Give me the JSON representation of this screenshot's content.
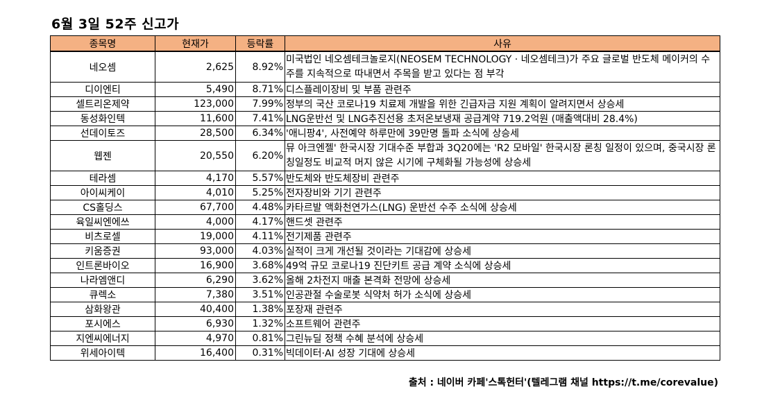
{
  "title": "6월 3일 52주 신고가",
  "headers": [
    "종목명",
    "현재가",
    "등락률",
    "사유"
  ],
  "rows": [
    {
      "name": "네오셈",
      "price": "2,625",
      "change": "8.92%",
      "reason": "미국법인 네오셈테크놀로지(NEOSEM TECHNOLOGY · 네오셈테크)가 주요 글로벌 반도체 메이커의 수주를 지속적으로 따내면서 주목을 받고 있다는 점 부각"
    },
    {
      "name": "디이엔티",
      "price": "5,490",
      "change": "8.71%",
      "reason": "디스플레이장비 및 부품 관련주"
    },
    {
      "name": "셀트리온제약",
      "price": "123,000",
      "change": "7.99%",
      "reason": "정부의 국산 코로나19 치료제 개발을 위한 긴급자금 지원 계획이 알려지면서 상승세"
    },
    {
      "name": "동성화인텍",
      "price": "11,600",
      "change": "7.41%",
      "reason": "LNG운반선 및 LNG추진선용 초저온보냉재 공급계약 719.2억원 (매출액대비 28.4%)"
    },
    {
      "name": "선데이토즈",
      "price": "28,500",
      "change": "6.34%",
      "reason": "'애니팡4', 사전예약 하루만에 39만명 돌파 소식에 상승세"
    },
    {
      "name": "웹젠",
      "price": "20,550",
      "change": "6.20%",
      "reason": "뮤 아크엔젤' 한국시장 기대수준 부합과 3Q20에는 'R2 모바일' 한국시장 론칭 일정이 있으며, 중국시장 론칭일정도 비교적 머지 않은 시기에 구체화될 가능성에 상승세"
    },
    {
      "name": "테라셈",
      "price": "4,170",
      "change": "5.57%",
      "reason": "반도체와 반도체장비 관련주"
    },
    {
      "name": "아이씨케이",
      "price": "4,010",
      "change": "5.25%",
      "reason": "전자장비와 기기 관련주"
    },
    {
      "name": "CS홀딩스",
      "price": "67,700",
      "change": "4.48%",
      "reason": "카타르발 액화천연가스(LNG) 운반선 수주 소식에 상승세"
    },
    {
      "name": "육일씨엔에쓰",
      "price": "4,000",
      "change": "4.17%",
      "reason": "핸드셋 관련주"
    },
    {
      "name": "비츠로셀",
      "price": "19,000",
      "change": "4.11%",
      "reason": "전기제품 관련주"
    },
    {
      "name": "키움증권",
      "price": "93,000",
      "change": "4.03%",
      "reason": "실적이 크게 개선될 것이라는 기대감에 상승세"
    },
    {
      "name": "인트론바이오",
      "price": "16,900",
      "change": "3.68%",
      "reason": "49억 규모 코로나19 진단키트 공급 계약 소식에 상승세"
    },
    {
      "name": "나라엠앤디",
      "price": "6,290",
      "change": "3.62%",
      "reason": "올해 2차전지 매출 본격화 전망에 상승세"
    },
    {
      "name": "큐렉소",
      "price": "7,380",
      "change": "3.51%",
      "reason": "인공관절 수술로봇 식약처 허가 소식에 상승세"
    },
    {
      "name": "삼화왕관",
      "price": "40,400",
      "change": "1.38%",
      "reason": "포장재 관련주"
    },
    {
      "name": "포시에스",
      "price": "6,930",
      "change": "1.32%",
      "reason": "소프트웨어 관련주"
    },
    {
      "name": "지엔씨에너지",
      "price": "4,970",
      "change": "0.81%",
      "reason": "그린뉴딜 정책 수혜 분석에 상승세"
    },
    {
      "name": "위세아이텍",
      "price": "16,400",
      "change": "0.31%",
      "reason": "빅데이터·AI 성장 기대에 상승세"
    }
  ],
  "source": "출처 : 네이버 카페'스톡헌터'(텔레그램 채널 https://t.me/corevalue)",
  "colors": {
    "header_bg": "#f4b183",
    "border": "#000000"
  }
}
